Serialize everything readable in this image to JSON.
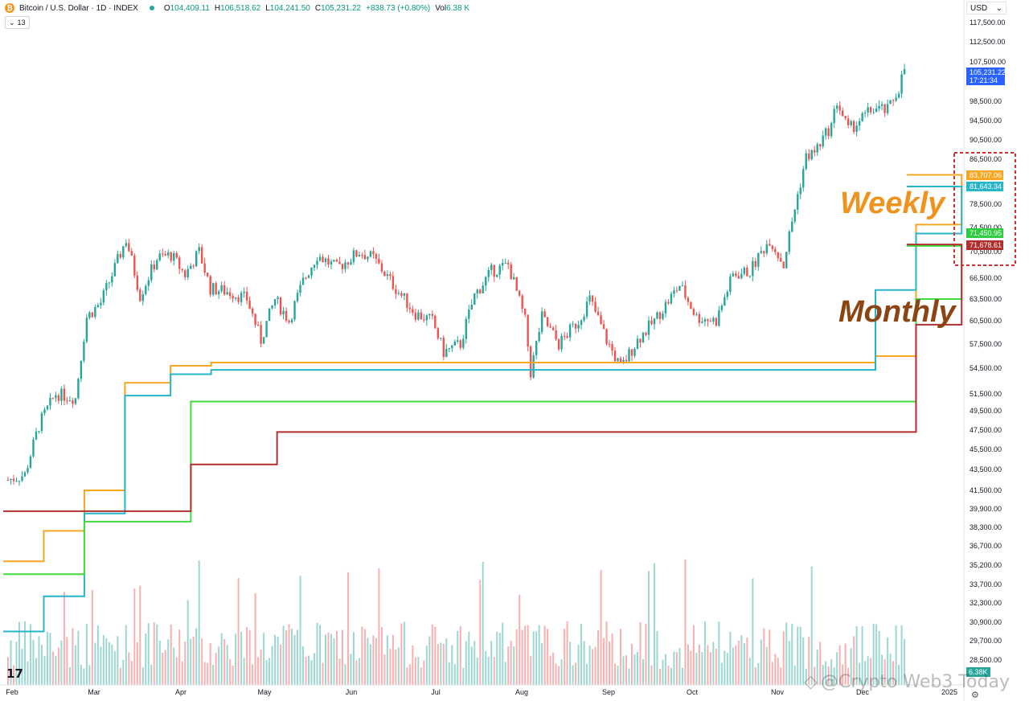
{
  "header": {
    "title": "Bitcoin / U.S. Dollar · 1D · INDEX",
    "open_label": "O",
    "open": "104,409.11",
    "high_label": "H",
    "high": "106,518.62",
    "low_label": "L",
    "low": "104,241.50",
    "close_label": "C",
    "close": "105,231.22",
    "change": "+838.73 (+0.80%)",
    "vol_label": "Vol",
    "vol": "6.38 K",
    "indicator_count": "13"
  },
  "currency": "USD",
  "watermark": "@Crypto Web3 Today",
  "chart_data": {
    "type": "candlestick",
    "x_ticks": [
      "Feb",
      "Mar",
      "Apr",
      "May",
      "Jun",
      "Jul",
      "Aug",
      "Sep",
      "Oct",
      "Nov",
      "Dec",
      "2025"
    ],
    "y_ticks": [
      "117,500.00",
      "112,500.00",
      "107,500.00",
      "98,500.00",
      "94,500.00",
      "90,500.00",
      "86,500.00",
      "78,500.00",
      "74,500.00",
      "70,500.00",
      "66,500.00",
      "63,500.00",
      "60,500.00",
      "57,500.00",
      "54,500.00",
      "51,500.00",
      "49,500.00",
      "47,500.00",
      "45,500.00",
      "43,500.00",
      "41,500.00",
      "39,900.00",
      "38,300.00",
      "36,700.00",
      "35,200.00",
      "33,700.00",
      "32,300.00",
      "30,900.00",
      "29,700.00",
      "28,500.00"
    ],
    "price_path": [
      [
        "2024-02-01",
        42500
      ],
      [
        "2024-02-07",
        43000
      ],
      [
        "2024-02-12",
        48000
      ],
      [
        "2024-02-18",
        51500
      ],
      [
        "2024-02-25",
        51000
      ],
      [
        "2024-02-29",
        61000
      ],
      [
        "2024-03-05",
        63000
      ],
      [
        "2024-03-10",
        68000
      ],
      [
        "2024-03-14",
        72500
      ],
      [
        "2024-03-19",
        64000
      ],
      [
        "2024-03-25",
        69500
      ],
      [
        "2024-03-30",
        70000
      ],
      [
        "2024-04-04",
        67000
      ],
      [
        "2024-04-09",
        70500
      ],
      [
        "2024-04-13",
        65000
      ],
      [
        "2024-04-20",
        64500
      ],
      [
        "2024-04-26",
        63500
      ],
      [
        "2024-05-01",
        58000
      ],
      [
        "2024-05-06",
        63500
      ],
      [
        "2024-05-11",
        60500
      ],
      [
        "2024-05-16",
        66000
      ],
      [
        "2024-05-21",
        70000
      ],
      [
        "2024-05-28",
        68000
      ],
      [
        "2024-06-05",
        70500
      ],
      [
        "2024-06-10",
        69500
      ],
      [
        "2024-06-18",
        65000
      ],
      [
        "2024-06-25",
        61500
      ],
      [
        "2024-07-01",
        60500
      ],
      [
        "2024-07-05",
        56500
      ],
      [
        "2024-07-11",
        57500
      ],
      [
        "2024-07-16",
        64000
      ],
      [
        "2024-07-22",
        67500
      ],
      [
        "2024-07-28",
        68500
      ],
      [
        "2024-08-03",
        60500
      ],
      [
        "2024-08-05",
        54000
      ],
      [
        "2024-08-09",
        61000
      ],
      [
        "2024-08-15",
        57500
      ],
      [
        "2024-08-22",
        60500
      ],
      [
        "2024-08-26",
        63500
      ],
      [
        "2024-09-01",
        58000
      ],
      [
        "2024-09-06",
        54500
      ],
      [
        "2024-09-12",
        58000
      ],
      [
        "2024-09-18",
        60500
      ],
      [
        "2024-09-27",
        65500
      ],
      [
        "2024-10-03",
        61000
      ],
      [
        "2024-10-10",
        60500
      ],
      [
        "2024-10-16",
        67000
      ],
      [
        "2024-10-22",
        67500
      ],
      [
        "2024-10-29",
        72500
      ],
      [
        "2024-11-03",
        68500
      ],
      [
        "2024-11-06",
        75500
      ],
      [
        "2024-11-11",
        87000
      ],
      [
        "2024-11-14",
        88000
      ],
      [
        "2024-11-20",
        93500
      ],
      [
        "2024-11-22",
        98500
      ],
      [
        "2024-11-26",
        92500
      ],
      [
        "2024-12-05",
        97000
      ],
      [
        "2024-12-10",
        96500
      ],
      [
        "2024-12-14",
        101500
      ],
      [
        "2024-12-16",
        106000
      ]
    ],
    "volume": {
      "last": "6.38K"
    },
    "lines": [
      {
        "name": "Weekly",
        "color": "#f5a623",
        "value_label": "83,707.06",
        "steps": [
          [
            0,
            35500
          ],
          [
            0.04,
            38000
          ],
          [
            0.08,
            41500
          ],
          [
            0.12,
            52800
          ],
          [
            0.165,
            54800
          ],
          [
            0.205,
            55200
          ],
          [
            0.86,
            56000
          ],
          [
            0.9,
            75000
          ],
          [
            0.945,
            83707
          ]
        ]
      },
      {
        "name": "Weekly",
        "color": "#26b5c9",
        "value_label": "81,643.34",
        "steps": [
          [
            0,
            30300
          ],
          [
            0.04,
            32800
          ],
          [
            0.08,
            39500
          ],
          [
            0.12,
            51300
          ],
          [
            0.165,
            53800
          ],
          [
            0.205,
            54300
          ],
          [
            0.86,
            64800
          ],
          [
            0.9,
            73500
          ],
          [
            0.945,
            81643
          ]
        ]
      },
      {
        "name": "Monthly",
        "color": "#3fdc3f",
        "value_label": "71,450.95",
        "steps": [
          [
            0,
            34500
          ],
          [
            0.08,
            38800
          ],
          [
            0.185,
            50600
          ],
          [
            0.9,
            63500
          ],
          [
            0.945,
            71451
          ]
        ]
      },
      {
        "name": "Monthly",
        "color": "#b03030",
        "value_label": "71,678.61",
        "steps": [
          [
            0,
            39700
          ],
          [
            0.185,
            44000
          ],
          [
            0.27,
            47300
          ],
          [
            0.9,
            60000
          ],
          [
            0.945,
            71679
          ]
        ]
      }
    ],
    "last_price": {
      "value": "105,231.22",
      "countdown": "17:21:34",
      "color": "#2962ff"
    },
    "annotations": [
      {
        "text": "Weekly",
        "color": "#f0931e"
      },
      {
        "text": "Monthly",
        "color": "#8b4513"
      }
    ]
  }
}
